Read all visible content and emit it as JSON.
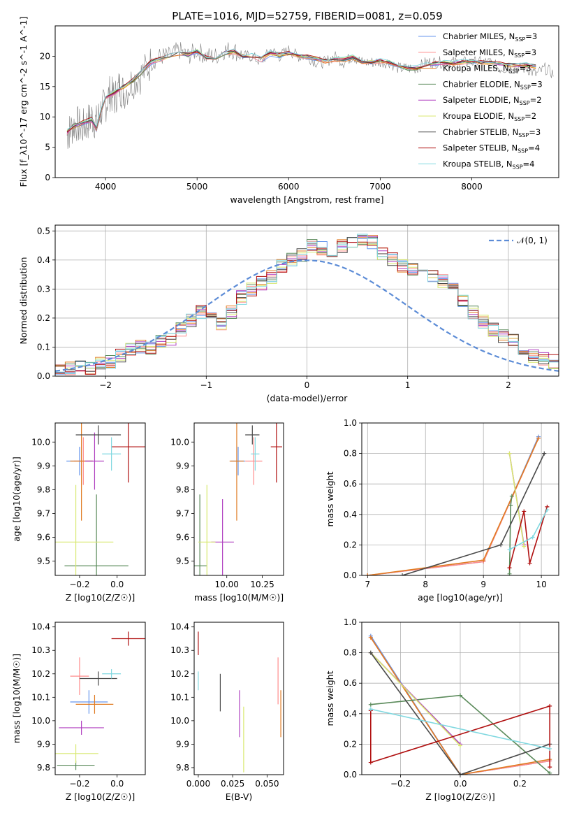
{
  "figure_title": "PLATE=1016, MJD=52759, FIBERID=0081, z=0.059",
  "chart_data": [
    {
      "id": "spectrum",
      "type": "line",
      "xlabel": "wavelength [Angstrom, rest frame]",
      "ylabel": "Flux [f_λ10^-17 erg cm^-2 s^-1 A^-1]",
      "xlim": [
        3450,
        8950
      ],
      "ylim": [
        0,
        25
      ],
      "xticks": [
        4000,
        5000,
        6000,
        7000,
        8000
      ],
      "yticks": [
        0,
        5,
        10,
        15,
        20
      ],
      "grid": false,
      "legend_position": "top-right",
      "observed": {
        "color": "#808080",
        "x": [
          3580,
          3620,
          3680,
          3740,
          3800,
          3850,
          3900,
          3950,
          4000,
          4050,
          4100,
          4150,
          4200,
          4300,
          4400,
          4500,
          4600,
          4700,
          4800,
          4900,
          5000,
          5100,
          5200,
          5300,
          5400,
          5500,
          5600,
          5700,
          5800,
          5900,
          6000,
          6100,
          6200,
          6300,
          6400,
          6500,
          6600,
          6700,
          6800,
          6900,
          7000,
          7100,
          7200,
          7300,
          7400,
          7500,
          7600,
          7700,
          7800,
          7900,
          8000,
          8100,
          8200,
          8300,
          8400,
          8500,
          8600,
          8700,
          8800,
          8900
        ],
        "y": [
          7,
          8,
          9,
          8,
          9,
          10,
          9,
          11,
          12,
          14,
          13,
          15,
          14,
          16,
          17,
          19,
          20,
          20,
          21,
          20,
          21,
          20,
          20,
          21,
          21,
          20,
          20,
          19,
          21,
          20,
          21,
          20,
          20,
          19,
          19,
          20,
          19,
          20,
          19,
          19,
          19,
          19,
          18,
          18,
          18,
          19,
          19,
          19,
          19,
          19,
          19,
          19,
          19,
          18,
          18,
          18,
          18,
          17,
          18,
          17
        ]
      },
      "model_x": [
        3580,
        3650,
        3750,
        3850,
        3900,
        3950,
        4000,
        4100,
        4200,
        4300,
        4400,
        4500,
        4600,
        4700,
        4800,
        4900,
        5000,
        5100,
        5200,
        5300,
        5400,
        5500,
        5600,
        5700,
        5800,
        5900,
        6000,
        6100,
        6200,
        6300,
        6400,
        6500,
        6600,
        6700,
        6800,
        6900,
        7000,
        7100,
        7200,
        7300,
        7400,
        7500,
        7600,
        7700,
        7800,
        7900,
        8000,
        8100,
        8200,
        8300,
        8400,
        8500,
        8600,
        8700
      ],
      "model_y": [
        7.5,
        8.5,
        9,
        9.5,
        8,
        11,
        13,
        14,
        15,
        16,
        17.5,
        19,
        19.5,
        20,
        20.5,
        20.2,
        20.8,
        19.8,
        19.5,
        20.5,
        20.8,
        20,
        20,
        19.5,
        20.5,
        20.2,
        20.5,
        20,
        19.8,
        19.5,
        19.2,
        19.5,
        19.4,
        19.8,
        19.2,
        19,
        19.2,
        19,
        18.5,
        18,
        18,
        18.5,
        18.8,
        19,
        18.8,
        19,
        19.2,
        19,
        19,
        18.8,
        18.6,
        18.5,
        18.5,
        18.2
      ],
      "series": [
        {
          "name": "Chabrier MILES, N_SSP=3",
          "label_main": "Chabrier MILES, N",
          "label_sub": "SSP",
          "label_tail": "=3",
          "color": "#6495ed"
        },
        {
          "name": "Salpeter MILES, N_SSP=3",
          "label_main": "Salpeter MILES, N",
          "label_sub": "SSP",
          "label_tail": "=3",
          "color": "#ff8c8c"
        },
        {
          "name": "Kroupa MILES, N_SSP=3",
          "label_main": "Kroupa MILES, N",
          "label_sub": "SSP",
          "label_tail": "=3",
          "color": "#e07b22"
        },
        {
          "name": "Chabrier ELODIE, N_SSP=3",
          "label_main": "Chabrier ELODIE, N",
          "label_sub": "SSP",
          "label_tail": "=3",
          "color": "#5a8a5a"
        },
        {
          "name": "Salpeter ELODIE, N_SSP=2",
          "label_main": "Salpeter ELODIE, N",
          "label_sub": "SSP",
          "label_tail": "=2",
          "color": "#b040c0"
        },
        {
          "name": "Kroupa ELODIE, N_SSP=2",
          "label_main": "Kroupa ELODIE, N",
          "label_sub": "SSP",
          "label_tail": "=2",
          "color": "#d8e870"
        },
        {
          "name": "Chabrier STELIB, N_SSP=3",
          "label_main": "Chabrier STELIB, N",
          "label_sub": "SSP",
          "label_tail": "=3",
          "color": "#4a4a4a"
        },
        {
          "name": "Salpeter STELIB, N_SSP=4",
          "label_main": "Salpeter STELIB, N",
          "label_sub": "SSP",
          "label_tail": "=4",
          "color": "#b01010"
        },
        {
          "name": "Kroupa STELIB, N_SSP=4",
          "label_main": "Kroupa STELIB, N",
          "label_sub": "SSP",
          "label_tail": "=4",
          "color": "#80d8e0"
        }
      ]
    },
    {
      "id": "residuals",
      "type": "bar",
      "xlabel": "(data-model)/error",
      "ylabel": "Normed distribution",
      "xlim": [
        -2.5,
        2.5
      ],
      "ylim": [
        0,
        0.52
      ],
      "xticks": [
        -2,
        -1,
        0,
        1,
        2
      ],
      "xtick_labels": [
        "−2",
        "−1",
        "0",
        "1",
        "2"
      ],
      "yticks": [
        0.0,
        0.1,
        0.2,
        0.3,
        0.4,
        0.5
      ],
      "ytick_labels": [
        "0.0",
        "0.1",
        "0.2",
        "0.3",
        "0.4",
        "0.5"
      ],
      "grid": true,
      "bin_edges_start": -2.5,
      "bin_width": 0.1,
      "hist_values": [
        0.02,
        0.03,
        0.03,
        0.03,
        0.04,
        0.05,
        0.07,
        0.09,
        0.1,
        0.1,
        0.12,
        0.13,
        0.16,
        0.19,
        0.22,
        0.2,
        0.18,
        0.22,
        0.27,
        0.3,
        0.32,
        0.34,
        0.38,
        0.4,
        0.42,
        0.45,
        0.44,
        0.43,
        0.45,
        0.46,
        0.47,
        0.46,
        0.42,
        0.4,
        0.38,
        0.37,
        0.36,
        0.35,
        0.33,
        0.3,
        0.26,
        0.22,
        0.19,
        0.16,
        0.14,
        0.12,
        0.09,
        0.07,
        0.06,
        0.05
      ],
      "gaussian_label": "𝒩(0, 1)",
      "gaussian_color": "#5b8bd6",
      "legend_position": "top-right"
    },
    {
      "id": "age_vs_Z",
      "type": "scatter",
      "xlabel": "Z [log10(Z/Z☉)]",
      "ylabel": "age [log10(age/yr)]",
      "xlim": [
        -0.33,
        0.15
      ],
      "ylim": [
        9.44,
        10.08
      ],
      "xticks": [
        -0.2,
        0.0
      ],
      "xtick_labels": [
        "−0.2",
        "0.0"
      ],
      "yticks": [
        9.5,
        9.6,
        9.7,
        9.8,
        9.9,
        10.0
      ],
      "ytick_labels": [
        "9.5",
        "9.6",
        "9.7",
        "9.8",
        "9.9",
        "10.0"
      ],
      "points": [
        {
          "x": -0.2,
          "y": 9.92,
          "xerr": 0.07,
          "yerr": 0.06,
          "color": "#6495ed"
        },
        {
          "x": -0.18,
          "y": 9.92,
          "xerr": 0.05,
          "yerr": 0.1,
          "color": "#ff8c8c"
        },
        {
          "x": -0.19,
          "y": 9.92,
          "xerr": 0.06,
          "yerr": 0.25,
          "color": "#e07b22"
        },
        {
          "x": -0.11,
          "y": 9.48,
          "xerr": 0.17,
          "yerr": 0.3,
          "color": "#5a8a5a"
        },
        {
          "x": -0.12,
          "y": 9.92,
          "xerr": 0.05,
          "yerr": 0.12,
          "color": "#b040c0"
        },
        {
          "x": -0.22,
          "y": 9.58,
          "xerr": 0.2,
          "yerr": 0.24,
          "color": "#d8e870"
        },
        {
          "x": -0.1,
          "y": 10.03,
          "xerr": 0.12,
          "yerr": 0.04,
          "color": "#4a4a4a"
        },
        {
          "x": 0.06,
          "y": 9.98,
          "xerr": 0.09,
          "yerr": 0.15,
          "color": "#b01010"
        },
        {
          "x": -0.03,
          "y": 9.95,
          "xerr": 0.05,
          "yerr": 0.07,
          "color": "#80d8e0"
        }
      ]
    },
    {
      "id": "age_vs_mass",
      "type": "scatter",
      "xlabel": "mass [log10(M/M☉)]",
      "ylabel": "",
      "xlim": [
        9.77,
        10.4
      ],
      "ylim": [
        9.44,
        10.08
      ],
      "xticks": [
        10.0,
        10.25
      ],
      "xtick_labels": [
        "10.00",
        "10.25"
      ],
      "yticks": [
        9.5,
        9.6,
        9.7,
        9.8,
        9.9,
        10.0
      ],
      "ytick_labels": [
        "9.5",
        "9.6",
        "9.7",
        "9.8",
        "9.9",
        "10.0"
      ],
      "points": [
        {
          "x": 10.08,
          "y": 9.92,
          "xerr": 0.05,
          "yerr": 0.06,
          "color": "#6495ed"
        },
        {
          "x": 10.19,
          "y": 9.92,
          "xerr": 0.06,
          "yerr": 0.1,
          "color": "#ff8c8c"
        },
        {
          "x": 10.07,
          "y": 9.92,
          "xerr": 0.05,
          "yerr": 0.25,
          "color": "#e07b22"
        },
        {
          "x": 9.81,
          "y": 9.48,
          "xerr": 0.05,
          "yerr": 0.3,
          "color": "#5a8a5a"
        },
        {
          "x": 9.97,
          "y": 9.58,
          "xerr": 0.08,
          "yerr": 0.18,
          "color": "#b040c0"
        },
        {
          "x": 9.86,
          "y": 9.58,
          "xerr": 0.06,
          "yerr": 0.24,
          "color": "#d8e870"
        },
        {
          "x": 10.18,
          "y": 10.03,
          "xerr": 0.05,
          "yerr": 0.04,
          "color": "#4a4a4a"
        },
        {
          "x": 10.35,
          "y": 9.98,
          "xerr": 0.04,
          "yerr": 0.15,
          "color": "#b01010"
        },
        {
          "x": 10.2,
          "y": 9.95,
          "xerr": 0.03,
          "yerr": 0.07,
          "color": "#80d8e0"
        }
      ]
    },
    {
      "id": "weight_vs_age",
      "type": "line",
      "xlabel": "age [log10(age/yr)]",
      "ylabel": "mass weight",
      "xlim": [
        6.9,
        10.3
      ],
      "ylim": [
        0,
        1.0
      ],
      "xticks": [
        7,
        8,
        9,
        10
      ],
      "xtick_labels": [
        "7",
        "8",
        "9",
        "10"
      ],
      "yticks": [
        0.0,
        0.2,
        0.4,
        0.6,
        0.8,
        1.0
      ],
      "ytick_labels": [
        "0.0",
        "0.2",
        "0.4",
        "0.6",
        "0.8",
        "1.0"
      ],
      "grid": true,
      "series": [
        {
          "color": "#6495ed",
          "x": [
            7.0,
            9.0,
            9.95
          ],
          "y": [
            0.0,
            0.09,
            0.91
          ]
        },
        {
          "color": "#ff8c8c",
          "x": [
            7.0,
            9.0,
            9.95
          ],
          "y": [
            0.0,
            0.09,
            0.9
          ]
        },
        {
          "color": "#e07b22",
          "x": [
            7.0,
            9.0,
            9.95
          ],
          "y": [
            0.0,
            0.1,
            0.9
          ]
        },
        {
          "color": "#5a8a5a",
          "x": [
            9.45,
            9.47,
            9.49
          ],
          "y": [
            0.01,
            0.46,
            0.52
          ]
        },
        {
          "color": "#b040c0",
          "x": [
            9.45,
            9.7
          ],
          "y": [
            0.8,
            0.2
          ]
        },
        {
          "color": "#d8e870",
          "x": [
            9.45,
            9.7
          ],
          "y": [
            0.8,
            0.19
          ]
        },
        {
          "color": "#4a4a4a",
          "x": [
            7.6,
            9.3,
            10.05
          ],
          "y": [
            0.0,
            0.2,
            0.8
          ]
        },
        {
          "color": "#b01010",
          "x": [
            9.45,
            9.7,
            9.8,
            10.1
          ],
          "y": [
            0.05,
            0.42,
            0.08,
            0.45
          ]
        },
        {
          "color": "#80d8e0",
          "x": [
            9.45,
            9.85,
            10.1
          ],
          "y": [
            0.17,
            0.25,
            0.43
          ]
        }
      ]
    },
    {
      "id": "mass_vs_Z",
      "type": "scatter",
      "xlabel": "Z [log10(Z/Z☉)]",
      "ylabel": "mass [log10(M/M☉)]",
      "xlim": [
        -0.33,
        0.15
      ],
      "ylim": [
        9.77,
        10.42
      ],
      "xticks": [
        -0.2,
        0.0
      ],
      "xtick_labels": [
        "−0.2",
        "0.0"
      ],
      "yticks": [
        9.8,
        9.9,
        10.0,
        10.1,
        10.2,
        10.3,
        10.4
      ],
      "ytick_labels": [
        "9.8",
        "9.9",
        "10.0",
        "10.1",
        "10.2",
        "10.3",
        "10.4"
      ],
      "points": [
        {
          "x": -0.15,
          "y": 10.08,
          "xerr": 0.1,
          "yerr": 0.05,
          "color": "#6495ed"
        },
        {
          "x": -0.2,
          "y": 10.19,
          "xerr": 0.05,
          "yerr": 0.08,
          "color": "#ff8c8c"
        },
        {
          "x": -0.12,
          "y": 10.07,
          "xerr": 0.1,
          "yerr": 0.04,
          "color": "#e07b22"
        },
        {
          "x": -0.22,
          "y": 9.81,
          "xerr": 0.1,
          "yerr": 0.02,
          "color": "#5a8a5a"
        },
        {
          "x": -0.19,
          "y": 9.97,
          "xerr": 0.12,
          "yerr": 0.03,
          "color": "#b040c0"
        },
        {
          "x": -0.22,
          "y": 9.86,
          "xerr": 0.12,
          "yerr": 0.04,
          "color": "#d8e870"
        },
        {
          "x": -0.1,
          "y": 10.18,
          "xerr": 0.1,
          "yerr": 0.03,
          "color": "#4a4a4a"
        },
        {
          "x": 0.06,
          "y": 10.35,
          "xerr": 0.09,
          "yerr": 0.03,
          "color": "#b01010"
        },
        {
          "x": -0.03,
          "y": 10.2,
          "xerr": 0.05,
          "yerr": 0.02,
          "color": "#80d8e0"
        }
      ]
    },
    {
      "id": "mass_vs_EBV",
      "type": "scatter",
      "xlabel": "E(B-V)",
      "ylabel": "",
      "xlim": [
        -0.003,
        0.062
      ],
      "ylim": [
        9.77,
        10.42
      ],
      "xticks": [
        0.0,
        0.025,
        0.05
      ],
      "xtick_labels": [
        "0.000",
        "0.025",
        "0.050"
      ],
      "yticks": [
        9.8,
        9.9,
        10.0,
        10.1,
        10.2,
        10.3,
        10.4
      ],
      "ytick_labels": [
        "9.8",
        "9.9",
        "10.0",
        "10.1",
        "10.2",
        "10.3",
        "10.4"
      ],
      "points": [
        {
          "x": 0.0,
          "y": 10.17,
          "xerr": 0.0,
          "yerr": 0.04,
          "color": "#80d8e0"
        },
        {
          "x": 0.0,
          "y": 10.33,
          "xerr": 0.0,
          "yerr": 0.05,
          "color": "#b01010"
        },
        {
          "x": 0.016,
          "y": 10.12,
          "xerr": 0.0,
          "yerr": 0.08,
          "color": "#4a4a4a"
        },
        {
          "x": 0.03,
          "y": 10.03,
          "xerr": 0.0,
          "yerr": 0.1,
          "color": "#b040c0"
        },
        {
          "x": 0.033,
          "y": 9.92,
          "xerr": 0.0,
          "yerr": 0.14,
          "color": "#d8e870"
        },
        {
          "x": 0.058,
          "y": 10.17,
          "xerr": 0.0,
          "yerr": 0.1,
          "color": "#ff8c8c"
        },
        {
          "x": 0.06,
          "y": 10.03,
          "xerr": 0.0,
          "yerr": 0.1,
          "color": "#e07b22"
        }
      ]
    },
    {
      "id": "weight_vs_Z",
      "type": "line",
      "xlabel": "Z [log10(Z/Z☉)]",
      "ylabel": "mass weight",
      "xlim": [
        -0.33,
        0.33
      ],
      "ylim": [
        0,
        1.0
      ],
      "xticks": [
        -0.2,
        0.0,
        0.2
      ],
      "xtick_labels": [
        "−0.2",
        "0.0",
        "0.2"
      ],
      "yticks": [
        0.0,
        0.2,
        0.4,
        0.6,
        0.8,
        1.0
      ],
      "ytick_labels": [
        "0.0",
        "0.2",
        "0.4",
        "0.6",
        "0.8",
        "1.0"
      ],
      "grid": true,
      "series": [
        {
          "color": "#6495ed",
          "x": [
            -0.3,
            0.0,
            0.3
          ],
          "y": [
            0.91,
            0.0,
            0.09
          ]
        },
        {
          "color": "#ff8c8c",
          "x": [
            -0.3,
            0.0,
            0.3
          ],
          "y": [
            0.9,
            0.0,
            0.09
          ]
        },
        {
          "color": "#e07b22",
          "x": [
            -0.3,
            0.0,
            0.3
          ],
          "y": [
            0.9,
            0.0,
            0.1
          ]
        },
        {
          "color": "#5a8a5a",
          "x": [
            -0.3,
            0.0,
            0.3
          ],
          "y": [
            0.46,
            0.52,
            0.01
          ]
        },
        {
          "color": "#b040c0",
          "x": [
            -0.3,
            0.0
          ],
          "y": [
            0.8,
            0.2
          ]
        },
        {
          "color": "#d8e870",
          "x": [
            -0.3,
            0.0
          ],
          "y": [
            0.8,
            0.19
          ]
        },
        {
          "color": "#4a4a4a",
          "x": [
            -0.3,
            0.0,
            0.3
          ],
          "y": [
            0.8,
            0.0,
            0.2
          ]
        },
        {
          "color": "#b01010",
          "x": [
            -0.3,
            -0.3,
            0.3,
            0.3
          ],
          "y": [
            0.42,
            0.08,
            0.45,
            0.05
          ]
        },
        {
          "color": "#80d8e0",
          "x": [
            -0.3,
            0.3
          ],
          "y": [
            0.43,
            0.17
          ]
        }
      ]
    }
  ]
}
